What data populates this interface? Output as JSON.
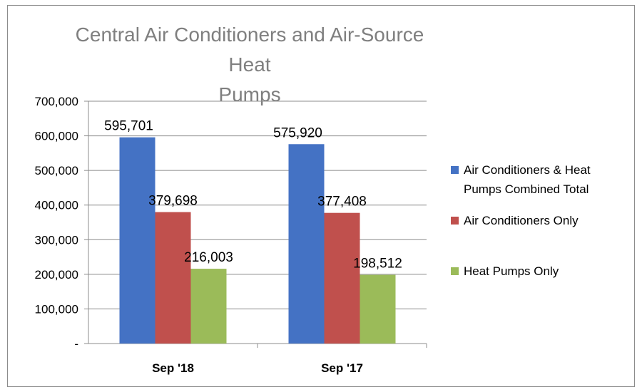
{
  "chart_data": {
    "type": "bar",
    "title": "Central Air Conditioners and Air-Source Heat Pumps",
    "title_lines": [
      "Central Air Conditioners and Air-Source Heat",
      "Pumps"
    ],
    "categories": [
      "Sep '18",
      "Sep '17"
    ],
    "series": [
      {
        "name": "Air Conditioners & Heat Pumps Combined Total",
        "name_lines": [
          "Air Conditioners & Heat",
          "Pumps Combined Total"
        ],
        "values": [
          595701,
          575920
        ],
        "labels": [
          "595,701",
          "575,920"
        ],
        "color": "#4472c4"
      },
      {
        "name": "Air Conditioners Only",
        "name_lines": [
          "Air Conditioners Only"
        ],
        "values": [
          379698,
          377408
        ],
        "labels": [
          "379,698",
          "377,408"
        ],
        "color": "#c0504d"
      },
      {
        "name": "Heat Pumps Only",
        "name_lines": [
          "Heat Pumps Only"
        ],
        "values": [
          216003,
          198512
        ],
        "labels": [
          "216,003",
          "198,512"
        ],
        "color": "#9bbb59"
      }
    ],
    "yticks": [
      {
        "value": 0,
        "label": "-"
      },
      {
        "value": 100000,
        "label": "100,000"
      },
      {
        "value": 200000,
        "label": "200,000"
      },
      {
        "value": 300000,
        "label": "300,000"
      },
      {
        "value": 400000,
        "label": "400,000"
      },
      {
        "value": 500000,
        "label": "500,000"
      },
      {
        "value": 600000,
        "label": "600,000"
      },
      {
        "value": 700000,
        "label": "700,000"
      }
    ],
    "ylim": [
      0,
      700000
    ],
    "grid": true,
    "legend_position": "right",
    "xlabel": "",
    "ylabel": ""
  },
  "colors": {
    "title": "#7f7f7f",
    "gridline": "#8c8c8c",
    "axis": "#8c8c8c"
  }
}
